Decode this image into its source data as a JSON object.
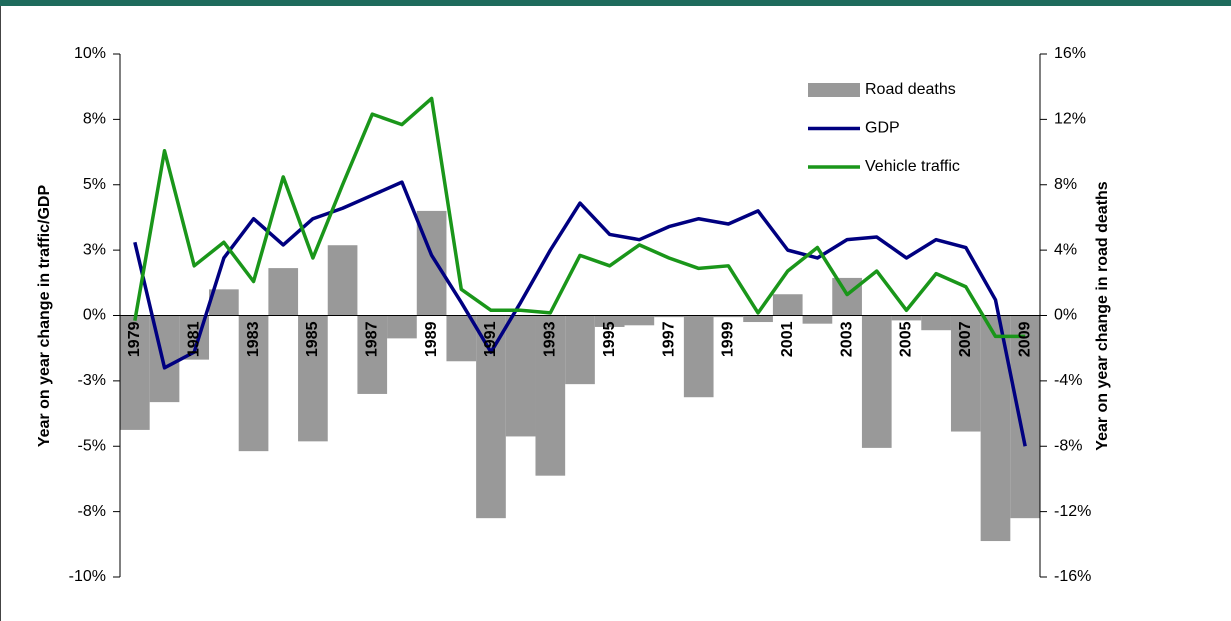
{
  "chart_data": {
    "type": "bar-line",
    "ylabel": "Year on year change in traffic/GDP",
    "y2label": "Year on year change in road deaths",
    "categories": [
      "1979",
      null,
      "1981",
      null,
      "1983",
      null,
      "1985",
      null,
      "1987",
      null,
      "1989",
      null,
      "1991",
      null,
      "1993",
      null,
      "1995",
      null,
      "1997",
      null,
      "1999",
      null,
      "2001",
      null,
      "2003",
      null,
      "2005",
      null,
      "2007",
      null,
      "2009"
    ],
    "series": [
      {
        "name": "Road deaths",
        "type": "bar",
        "axis": "y2",
        "color": "#999999",
        "values": [
          -7.0,
          -5.3,
          -2.7,
          1.6,
          -8.3,
          2.9,
          -7.7,
          4.3,
          -4.8,
          -1.4,
          6.4,
          -2.8,
          -12.4,
          -7.4,
          -9.8,
          -4.2,
          -0.7,
          -0.6,
          -0.1,
          -5.0,
          -0.1,
          -0.4,
          1.3,
          -0.5,
          2.3,
          -8.1,
          -0.3,
          -0.9,
          -7.1,
          -13.8,
          -12.4
        ]
      },
      {
        "name": "GDP",
        "type": "line",
        "color": "#000080",
        "values": [
          2.8,
          -2.0,
          -1.4,
          2.2,
          3.7,
          2.7,
          3.7,
          4.1,
          4.6,
          5.1,
          2.3,
          0.5,
          -1.4,
          0.5,
          2.5,
          4.3,
          3.1,
          2.9,
          3.4,
          3.7,
          3.5,
          4.0,
          2.5,
          2.2,
          2.9,
          3.0,
          2.2,
          2.9,
          2.6,
          0.6,
          -5.0
        ]
      },
      {
        "name": "Vehicle traffic",
        "type": "line",
        "color": "#1a961a",
        "values": [
          -0.2,
          6.3,
          1.9,
          2.8,
          1.3,
          5.3,
          2.2,
          5.0,
          7.7,
          7.3,
          8.3,
          1.0,
          0.2,
          0.2,
          0.1,
          2.3,
          1.9,
          2.7,
          2.2,
          1.8,
          1.9,
          0.1,
          1.7,
          2.6,
          0.8,
          1.7,
          0.2,
          1.6,
          1.1,
          -0.8,
          -0.8
        ]
      }
    ],
    "ylim": [
      -10,
      10
    ],
    "yticks": [
      {
        "value": 10,
        "label": "10%"
      },
      {
        "value": 7.5,
        "label": "8%"
      },
      {
        "value": 5,
        "label": "5%"
      },
      {
        "value": 2.5,
        "label": "3%"
      },
      {
        "value": 0,
        "label": "0%"
      },
      {
        "value": -2.5,
        "label": "-3%"
      },
      {
        "value": -5,
        "label": "-5%"
      },
      {
        "value": -7.5,
        "label": "-8%"
      },
      {
        "value": -10,
        "label": "-10%"
      }
    ],
    "y2lim": [
      -16,
      16
    ],
    "y2ticks": [
      {
        "value": 16,
        "label": "16%"
      },
      {
        "value": 12,
        "label": "12%"
      },
      {
        "value": 8,
        "label": "8%"
      },
      {
        "value": 4,
        "label": "4%"
      },
      {
        "value": 0,
        "label": "0%"
      },
      {
        "value": -4,
        "label": "-4%"
      },
      {
        "value": -8,
        "label": "-8%"
      },
      {
        "value": -12,
        "label": "-12%"
      },
      {
        "value": -16,
        "label": "-16%"
      }
    ],
    "legend": "upper right"
  }
}
